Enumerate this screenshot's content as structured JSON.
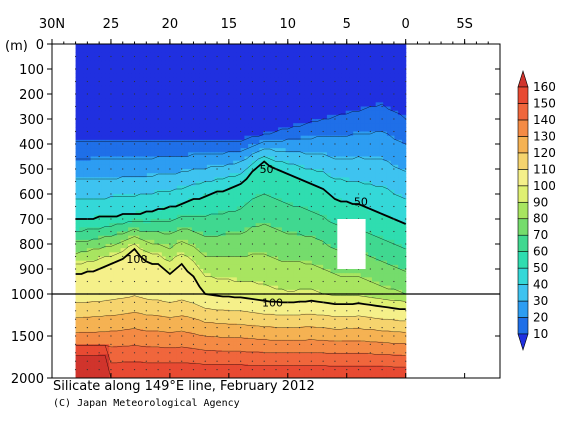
{
  "chart_data": {
    "type": "heatmap",
    "title": "Silicate along 149°E line, February 2012",
    "credit": "(C) Japan Meteorological Agency",
    "y_unit": "(m)",
    "x_ticks": [
      "30N",
      "25",
      "20",
      "15",
      "10",
      "5",
      "0",
      "5S"
    ],
    "x_tick_values": [
      30,
      25,
      20,
      15,
      10,
      5,
      0,
      -5
    ],
    "x_range": [
      30,
      -8
    ],
    "y_ticks": [
      "0",
      "100",
      "200",
      "300",
      "400",
      "500",
      "600",
      "700",
      "800",
      "900",
      "1000",
      "1500",
      "2000"
    ],
    "y_tick_values": [
      0,
      100,
      200,
      300,
      400,
      500,
      600,
      700,
      800,
      900,
      1000,
      1500,
      2000
    ],
    "y_axis_note": "depth axis linear 0-1000 m, then compressed 1000-2000 m",
    "data_x_extent": [
      28.0,
      0.0
    ],
    "colorbar_levels": [
      10,
      20,
      30,
      40,
      50,
      60,
      70,
      80,
      90,
      100,
      110,
      120,
      130,
      140,
      150,
      160
    ],
    "colorbar_colors": [
      "#2030e0",
      "#1f6fe8",
      "#2d9df2",
      "#3ec3f0",
      "#34d8d8",
      "#2fddb0",
      "#40d890",
      "#75dc6c",
      "#a8e560",
      "#dff072",
      "#f5f08a",
      "#f6d46e",
      "#f5b253",
      "#f48b45",
      "#f0663c",
      "#e84a32",
      "#d0342c"
    ],
    "contour_labels": [
      {
        "label": "50",
        "lat": 11.8,
        "depth": 500
      },
      {
        "label": "50",
        "lat": 3.8,
        "depth": 630
      },
      {
        "label": "100",
        "lat": 22.8,
        "depth": 860
      },
      {
        "label": "100",
        "lat": 11.3,
        "depth": 1100
      }
    ],
    "highlight_contours": [
      50,
      100
    ],
    "highlight_contour_values": [
      {
        "value": 50,
        "lats": [
          28,
          26,
          24,
          22,
          20,
          18,
          16,
          14,
          13,
          12,
          11,
          10,
          9,
          8,
          7,
          6,
          5,
          4,
          3,
          2,
          1,
          0
        ],
        "depths": [
          700,
          690,
          680,
          670,
          650,
          620,
          590,
          560,
          510,
          470,
          500,
          520,
          540,
          560,
          580,
          620,
          630,
          640,
          660,
          680,
          700,
          720
        ]
      },
      {
        "value": 100,
        "lats": [
          28,
          26,
          24,
          23,
          22,
          21,
          20,
          19,
          18,
          17,
          16,
          14,
          12,
          10,
          8,
          6,
          4,
          2,
          0
        ],
        "depths": [
          920,
          900,
          860,
          820,
          870,
          880,
          920,
          880,
          930,
          1000,
          1020,
          1040,
          1080,
          1100,
          1080,
          1120,
          1110,
          1150,
          1180
        ]
      }
    ],
    "masked_region": {
      "lat": [
        5.8,
        3.4
      ],
      "depth": [
        700,
        900
      ]
    },
    "grid": "dotted"
  }
}
